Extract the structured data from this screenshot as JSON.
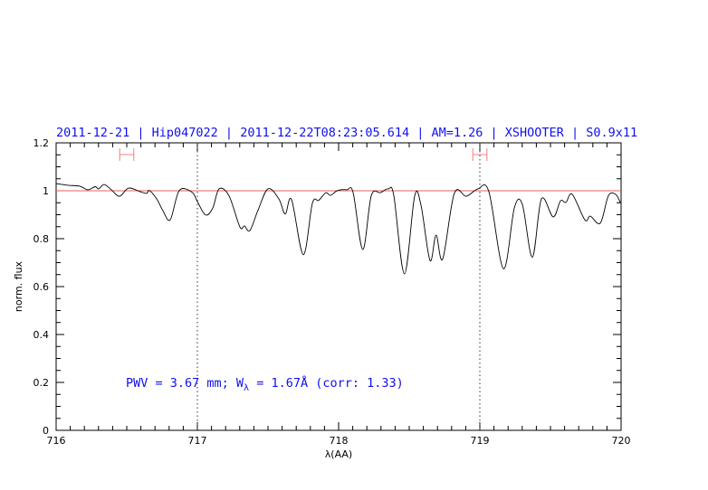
{
  "chart_data": {
    "type": "line",
    "title": "2011-12-21 | Hip047022 | 2011-12-22T08:23:05.614 | AM=1.26 | XSHOOTER | S0.9x11",
    "xlabel": "λ(AA)",
    "ylabel": "norm. flux",
    "xlim": [
      716,
      720
    ],
    "ylim": [
      0,
      1.2
    ],
    "xticks": [
      716,
      717,
      718,
      719,
      720
    ],
    "xtick_labels": [
      "716",
      "717",
      "718",
      "719",
      "720"
    ],
    "yticks": [
      0,
      0.2,
      0.4,
      0.6,
      0.8,
      1,
      1.2
    ],
    "ytick_labels": [
      "0",
      "0.2",
      "0.4",
      "0.6",
      "0.8",
      "1",
      "1.2"
    ],
    "x_minor_step": 0.1,
    "y_minor_step": 0.05,
    "grid": false,
    "reference_line": {
      "y": 1.0,
      "color": "#e06060"
    },
    "vertical_dotted_lines": [
      717,
      719
    ],
    "continuum_windows": [
      [
        716.45,
        716.55
      ],
      [
        718.95,
        719.05
      ]
    ],
    "window_color": "#f08080",
    "line_color": "#000000",
    "text_color": "#1010ee",
    "annotation": {
      "pwv": "PWV = 3.67 mm; W",
      "sub": "λ",
      "rest": " = 1.67Å (corr: 1.33)"
    },
    "series": [
      {
        "x": [
          716.0,
          716.083,
          716.167,
          716.224,
          716.276,
          716.301,
          716.34,
          716.391,
          716.449,
          716.513,
          716.596,
          716.641,
          716.66,
          716.712,
          716.756,
          716.808,
          716.872,
          716.962,
          717.0,
          717.058,
          717.109,
          717.154,
          717.224,
          717.301,
          717.333,
          717.372,
          717.429,
          717.5,
          717.577,
          717.622,
          717.667,
          717.75,
          717.814,
          717.859,
          717.91,
          717.942,
          717.994,
          718.058,
          718.103,
          718.171,
          718.231,
          718.295,
          718.353,
          718.391,
          718.466,
          718.538,
          718.583,
          718.647,
          718.69,
          718.737,
          718.819,
          718.904,
          718.987,
          719.064,
          719.167,
          719.244,
          719.301,
          719.372,
          719.436,
          719.519,
          719.571,
          719.609,
          719.654,
          719.744,
          719.782,
          719.853,
          719.91,
          719.962,
          719.994
        ],
        "y": [
          1.03,
          1.023,
          1.019,
          1.004,
          1.017,
          1.008,
          1.026,
          1.004,
          0.977,
          1.011,
          0.996,
          0.989,
          1.001,
          0.966,
          0.917,
          0.879,
          1.001,
          0.994,
          0.955,
          0.899,
          0.928,
          1.008,
          0.979,
          0.849,
          0.853,
          0.834,
          0.918,
          1.008,
          0.966,
          0.903,
          0.963,
          0.733,
          0.947,
          0.96,
          0.992,
          0.981,
          1.001,
          1.004,
          0.992,
          0.755,
          0.979,
          0.992,
          1.008,
          0.979,
          0.653,
          0.977,
          0.941,
          0.709,
          0.815,
          0.715,
          0.989,
          0.977,
          1.008,
          0.996,
          0.675,
          0.928,
          0.943,
          0.723,
          0.966,
          0.891,
          0.958,
          0.951,
          0.985,
          0.878,
          0.894,
          0.865,
          0.979,
          0.985,
          0.951
        ]
      }
    ]
  }
}
